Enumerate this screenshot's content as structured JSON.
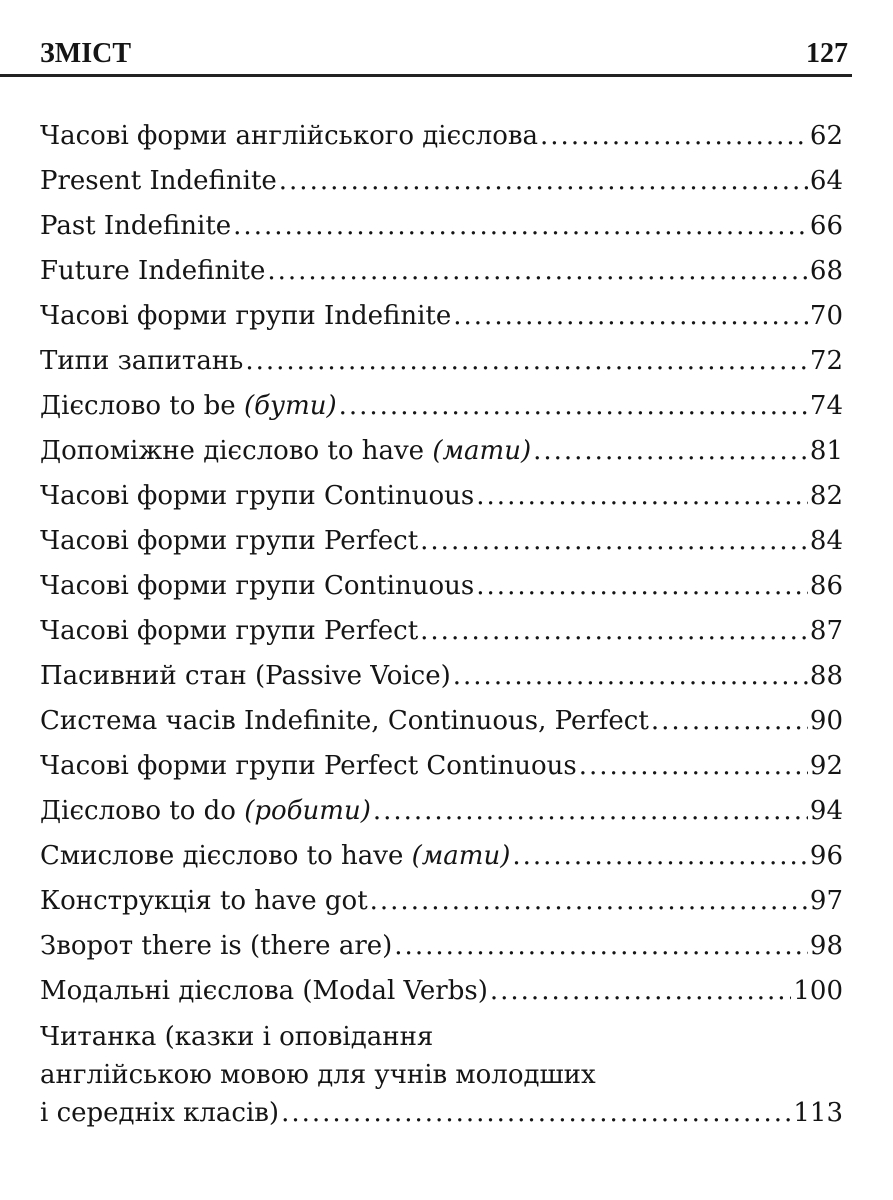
{
  "header": {
    "title": "ЗМІСТ",
    "page_number": "127"
  },
  "entries": [
    {
      "title": "Часові форми англійського дієслова ",
      "italic": "",
      "page": "62"
    },
    {
      "title": "Present Indefinite",
      "italic": "",
      "page": "64"
    },
    {
      "title": "Past Indefinite ",
      "italic": "",
      "page": "66"
    },
    {
      "title": "Future Indefinite ",
      "italic": "",
      "page": "68"
    },
    {
      "title": "Часові форми групи Indefinite ",
      "italic": "",
      "page": "70"
    },
    {
      "title": "Типи запитань",
      "italic": "",
      "page": "72"
    },
    {
      "title": "Дієслово to be ",
      "italic": "(бути)",
      "page": "74"
    },
    {
      "title": "Допоміжне дієслово to have ",
      "italic": "(мати)",
      "page": "81"
    },
    {
      "title": "Часові форми групи Continuous",
      "italic": "",
      "page": "82"
    },
    {
      "title": "Часові форми групи Perfect ",
      "italic": "",
      "page": "84"
    },
    {
      "title": "Часові форми групи Continuous",
      "italic": "",
      "page": "86"
    },
    {
      "title": "Часові форми групи Perfect ",
      "italic": "",
      "page": "87"
    },
    {
      "title": "Пасивний стан (Passive Voice)",
      "italic": "",
      "page": "88"
    },
    {
      "title": "Система часів Indefinite, Continuous, Perfect ",
      "italic": "",
      "page": "90"
    },
    {
      "title": "Часові форми групи Perfect Continuous",
      "italic": "",
      "page": "92"
    },
    {
      "title": "Дієслово to do ",
      "italic": "(робити)",
      "page": "94"
    },
    {
      "title": "Смислове дієслово to have ",
      "italic": "(мати)",
      "page": "96"
    },
    {
      "title": "Конструкція to have got ",
      "italic": "",
      "page": "97"
    },
    {
      "title": "Зворот there is (there are) ",
      "italic": "",
      "page": "98"
    },
    {
      "title": "Модальні дієслова (Modal Verbs)",
      "italic": "",
      "page": "100"
    }
  ],
  "last_entry": {
    "line1": "Читанка (казки і оповідання",
    "line2": "англійською мовою для учнів молодших",
    "line3": "і середніх класів)",
    "page": "113"
  }
}
